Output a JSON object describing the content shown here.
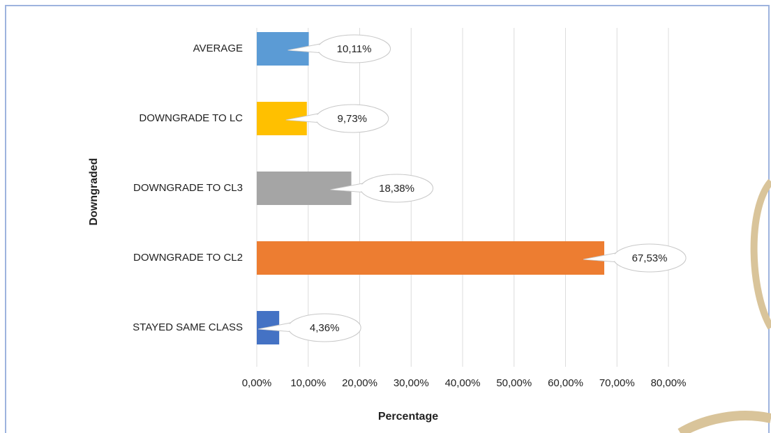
{
  "chart_data": {
    "type": "bar",
    "orientation": "horizontal",
    "categories": [
      "AVERAGE",
      "DOWNGRADE TO LC",
      "DOWNGRADE TO CL3",
      "DOWNGRADE TO CL2",
      "STAYED SAME CLASS"
    ],
    "values": [
      10.11,
      9.73,
      18.38,
      67.53,
      4.36
    ],
    "value_labels": [
      "10,11%",
      "9,73%",
      "18,38%",
      "67,53%",
      "4,36%"
    ],
    "colors": [
      "#5b9bd5",
      "#ffc000",
      "#a5a5a5",
      "#ed7d31",
      "#4472c4"
    ],
    "x_label": "Percentage",
    "y_label": "Downgraded",
    "xlim": [
      0,
      80
    ],
    "xticks": [
      {
        "value": 0,
        "label": "0,00%"
      },
      {
        "value": 10,
        "label": "10,00%"
      },
      {
        "value": 20,
        "label": "20,00%"
      },
      {
        "value": 30,
        "label": "30,00%"
      },
      {
        "value": 40,
        "label": "40,00%"
      },
      {
        "value": 50,
        "label": "50,00%"
      },
      {
        "value": 60,
        "label": "60,00%"
      },
      {
        "value": 70,
        "label": "70,00%"
      },
      {
        "value": 80,
        "label": "80,00%"
      }
    ],
    "grid": true
  }
}
